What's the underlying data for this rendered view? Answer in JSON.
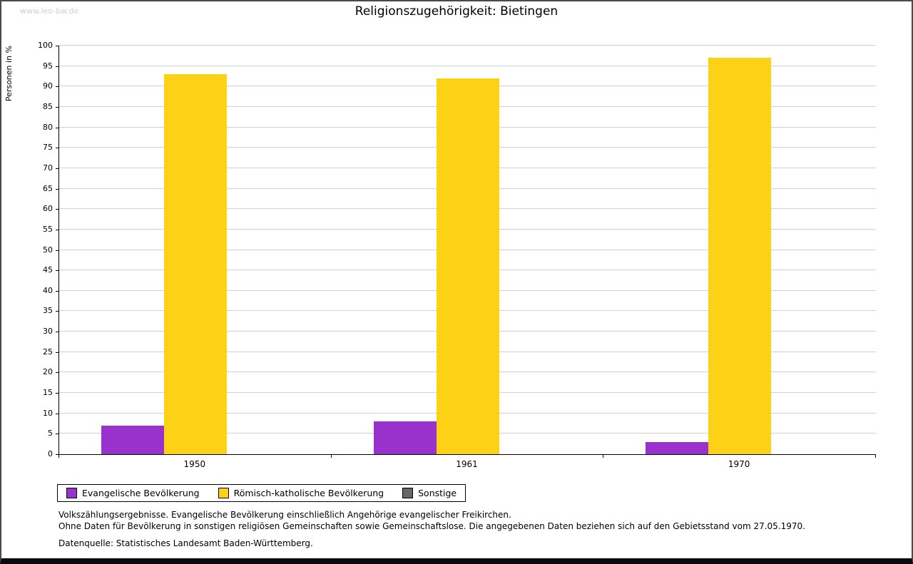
{
  "page": {
    "watermark": "www.leo-bw.de",
    "title": "Religionszugehörigkeit: Bietingen",
    "footnotes": {
      "line1": "Volkszählungsergebnisse. Evangelische Bevölkerung einschließlich Angehörige evangelischer Freikirchen.",
      "line2": "Ohne Daten für Bevölkerung in sonstigen religiösen Gemeinschaften sowie Gemeinschaftslose. Die angegebenen Daten beziehen sich auf den Gebietsstand vom 27.05.1970.",
      "source": "Datenquelle: Statistisches Landesamt Baden-Württemberg."
    }
  },
  "chart_data": {
    "type": "bar",
    "title": "Religionszugehörigkeit: Bietingen",
    "xlabel": "",
    "ylabel": "Personen in %",
    "ylim": [
      0,
      100
    ],
    "ytick_step": 5,
    "grid": true,
    "legend_position": "bottom",
    "categories": [
      "1950",
      "1961",
      "1970"
    ],
    "series": [
      {
        "name": "Evangelische Bevölkerung",
        "color": "#9932cc",
        "values": [
          7,
          8,
          3
        ]
      },
      {
        "name": "Römisch-katholische Bevölkerung",
        "color": "#fcd116",
        "values": [
          93,
          92,
          97
        ]
      },
      {
        "name": "Sonstige",
        "color": "#666666",
        "values": [
          0,
          0,
          0
        ]
      }
    ]
  }
}
